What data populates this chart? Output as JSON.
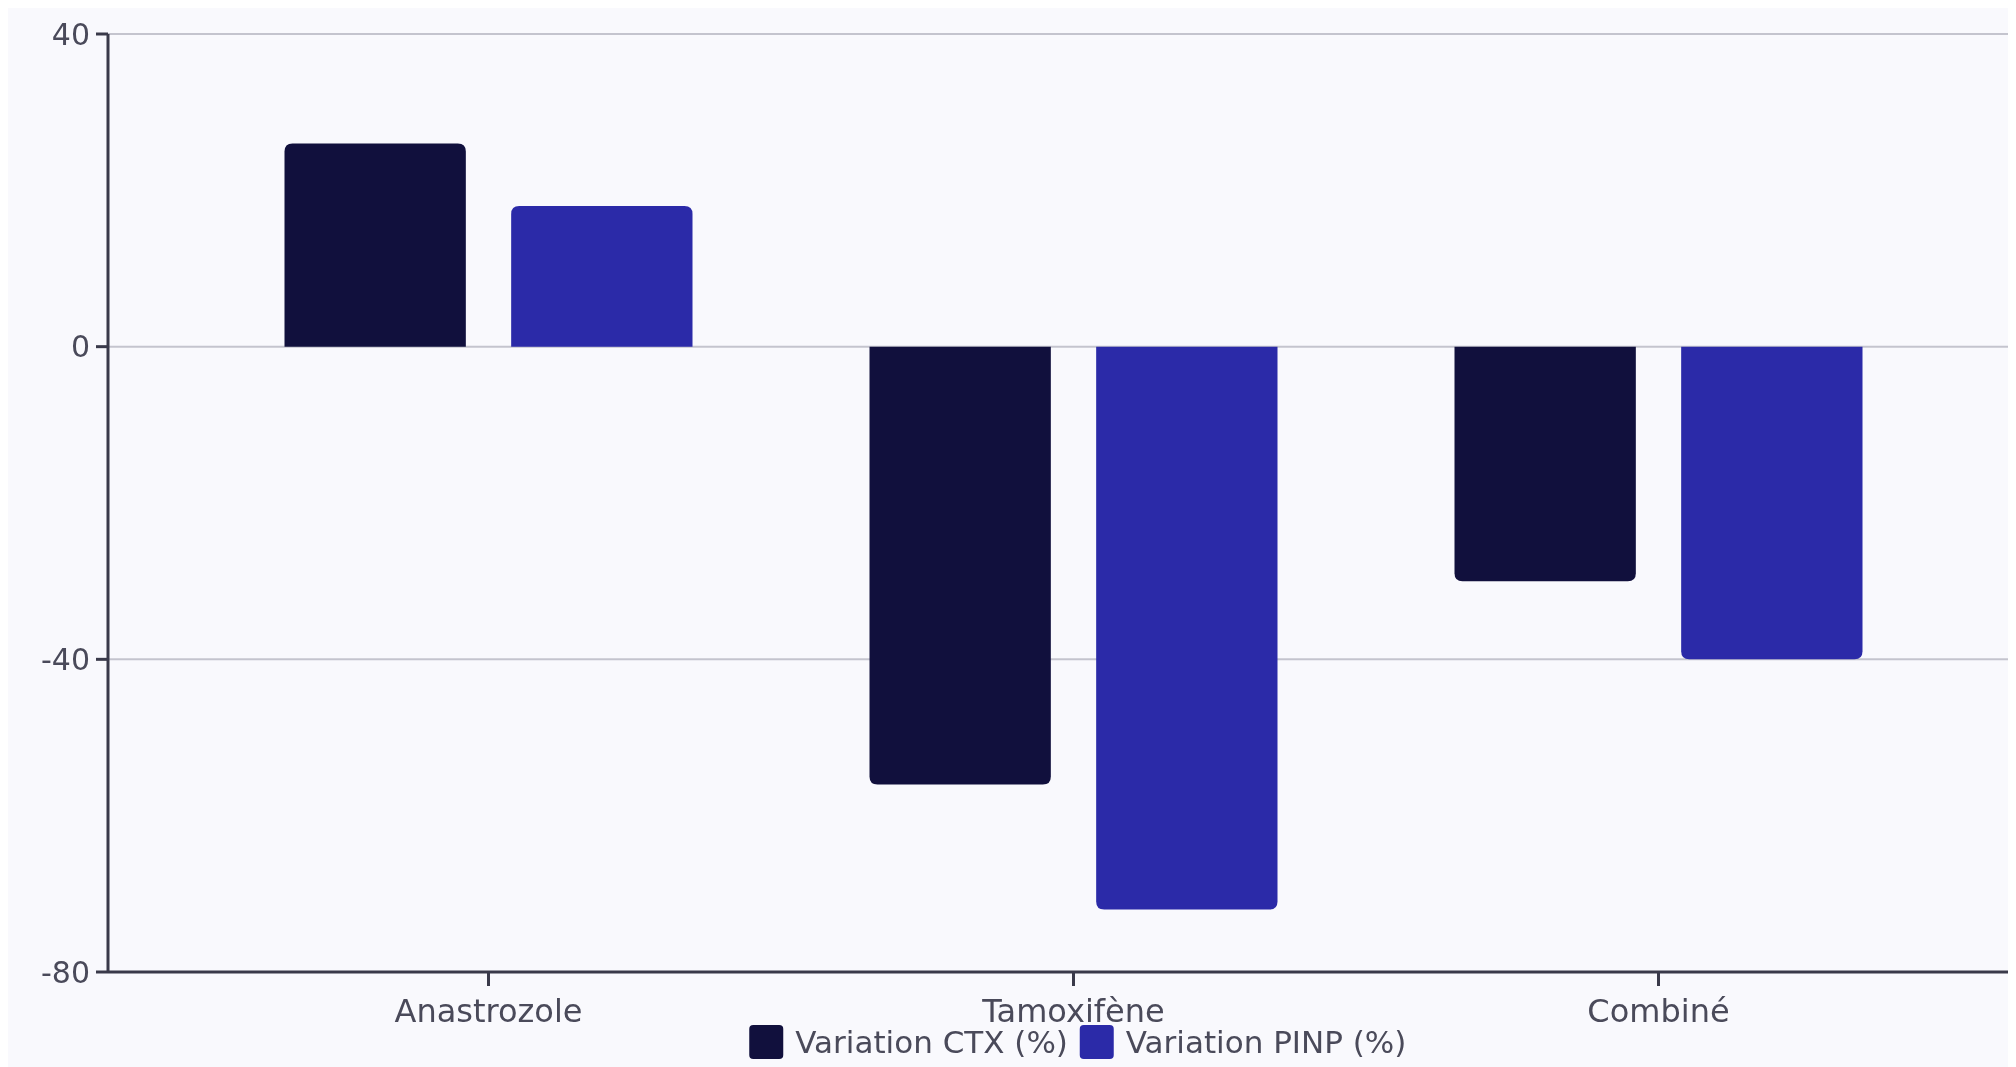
{
  "chart_data": {
    "type": "bar",
    "categories": [
      "Anastrozole",
      "Tamoxifène",
      "Combiné"
    ],
    "series": [
      {
        "name": "Variation CTX (%)",
        "color": "#11103d",
        "values": [
          26,
          -56,
          -30
        ]
      },
      {
        "name": "Variation PINP (%)",
        "color": "#2b2aa8",
        "values": [
          18,
          -72,
          -40
        ]
      }
    ],
    "ylim": [
      -80,
      40
    ],
    "yticks": [
      -80,
      -40,
      0,
      40
    ],
    "grid": "y",
    "legend": "bottom"
  }
}
